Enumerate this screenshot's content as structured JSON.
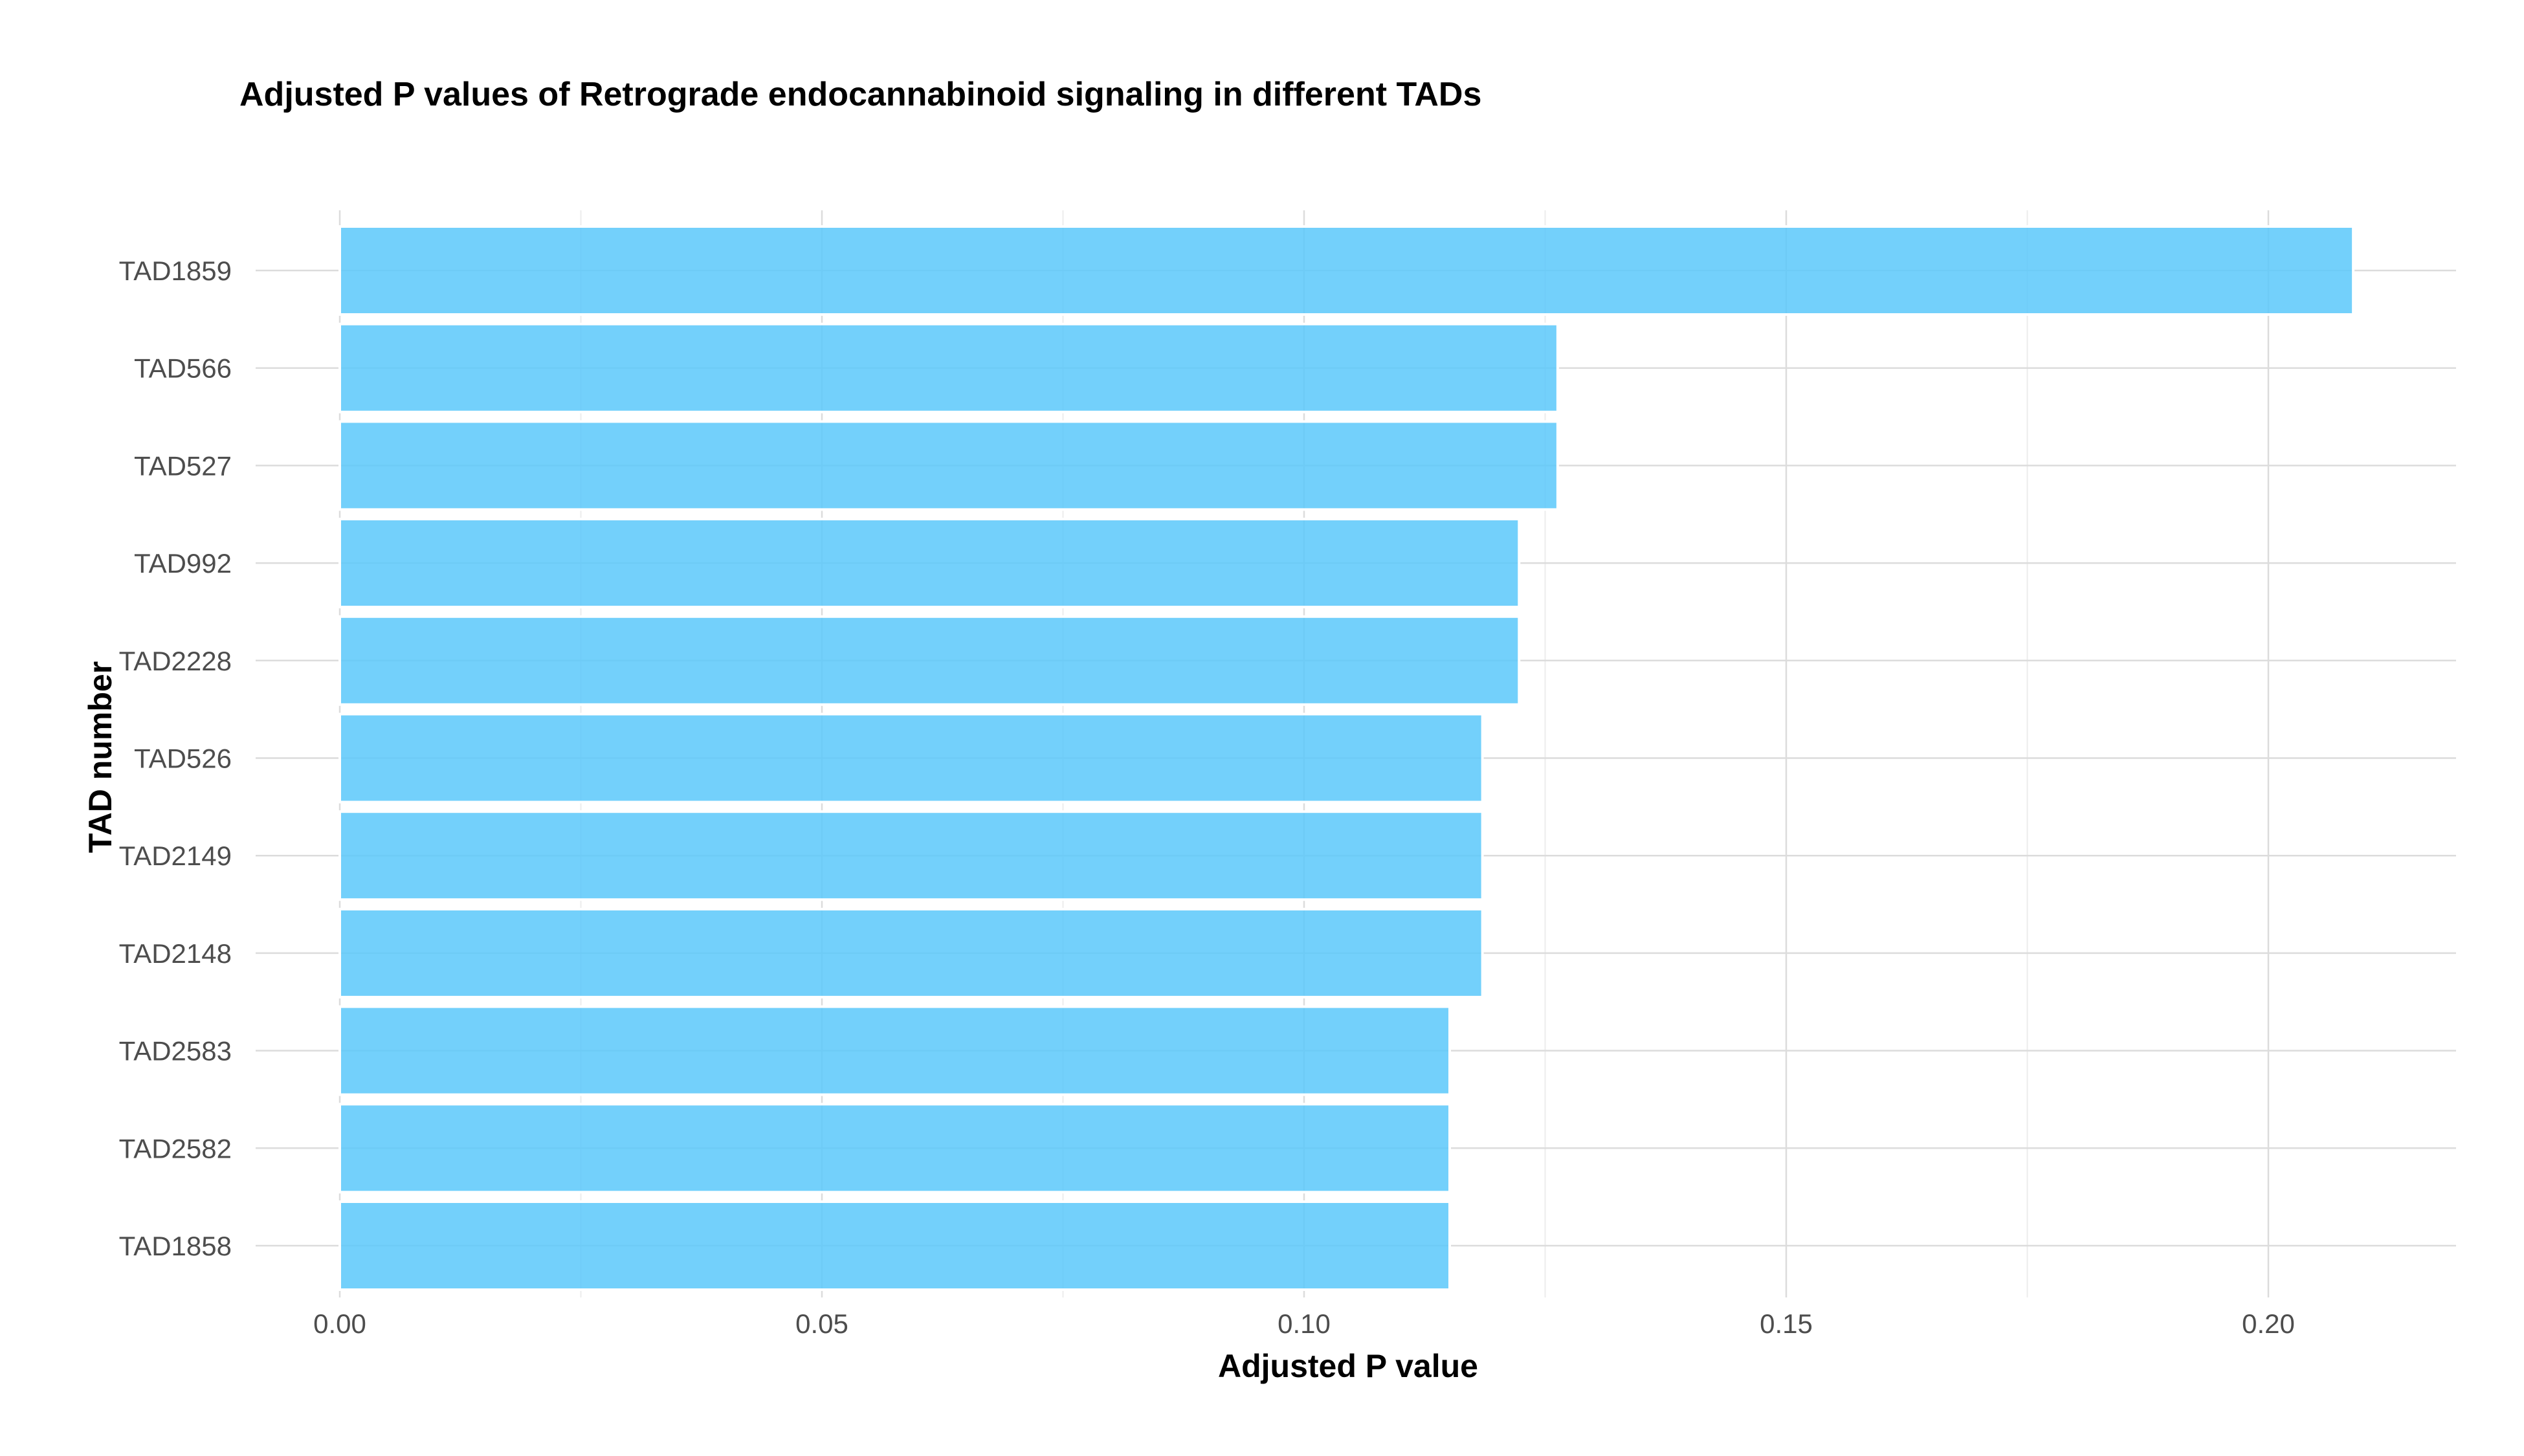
{
  "chart_data": {
    "type": "bar",
    "orientation": "horizontal",
    "title": "Adjusted P values of Retrograde endocannabinoid signaling in different TADs",
    "xlabel": "Adjusted P value",
    "ylabel": "TAD number",
    "categories": [
      "TAD1859",
      "TAD566",
      "TAD527",
      "TAD992",
      "TAD2228",
      "TAD526",
      "TAD2149",
      "TAD2148",
      "TAD2583",
      "TAD2582",
      "TAD1858"
    ],
    "values": [
      0.2088,
      0.1263,
      0.1263,
      0.1223,
      0.1223,
      0.1185,
      0.1185,
      0.1185,
      0.1151,
      0.1151,
      0.1151
    ],
    "xlim": [
      0,
      0.22
    ],
    "xticks": [
      "0.00",
      "0.05",
      "0.10",
      "0.15",
      "0.20"
    ],
    "grid": true,
    "colors": {
      "bar": "#5ac8fa",
      "grid": "#dcdcdc"
    }
  }
}
